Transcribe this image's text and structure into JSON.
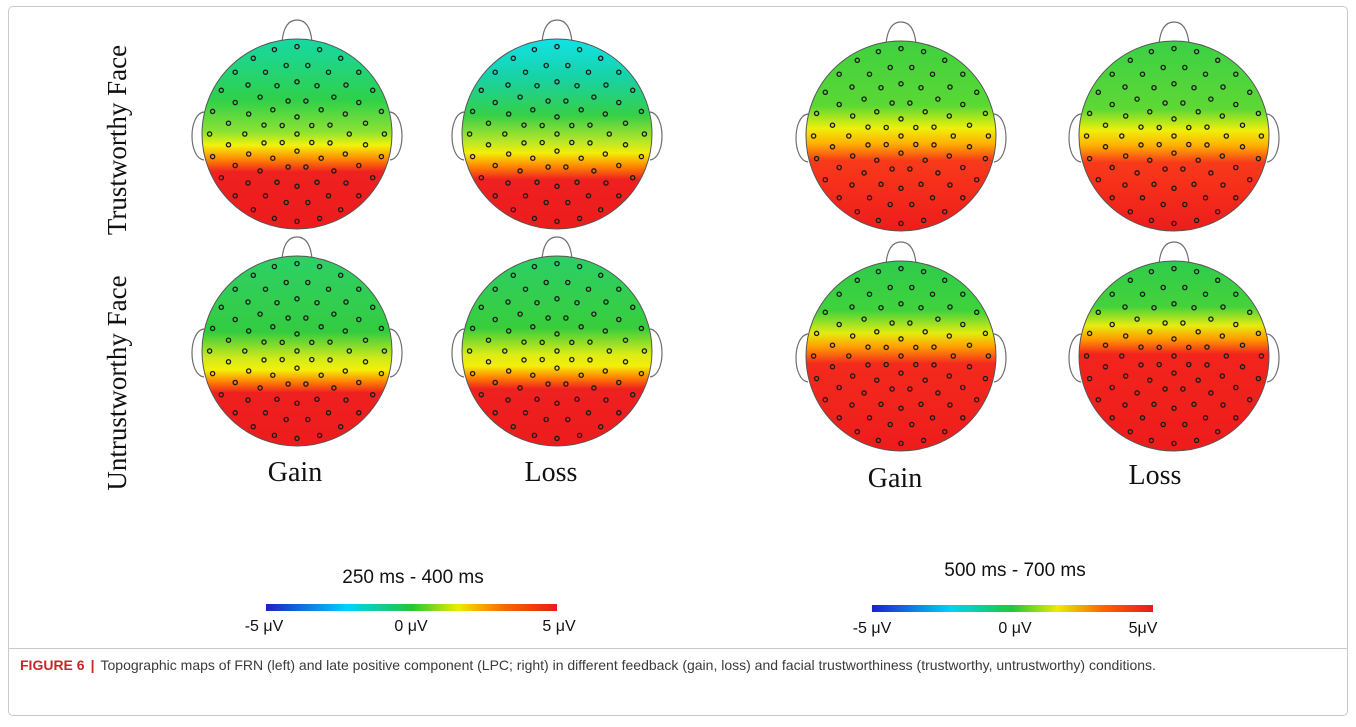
{
  "figure": {
    "row_labels": [
      "Trustworthy Face",
      "Untrustworthy Face"
    ],
    "panels": [
      {
        "time_window": "250 ms - 400 ms",
        "column_labels": [
          "Gain",
          "Loss"
        ],
        "colorbar_ticks": [
          "-5 μV",
          "0 μV",
          "5 μV"
        ],
        "colorbar_range_uV": [
          -5,
          5
        ]
      },
      {
        "time_window": "500 ms - 700 ms",
        "column_labels": [
          "Gain",
          "Loss"
        ],
        "colorbar_ticks": [
          "-5 μV",
          "0 μV",
          "5μV"
        ],
        "colorbar_range_uV": [
          -5,
          5
        ]
      }
    ],
    "colormap": [
      "#2020d0",
      "#00d8ff",
      "#22cc3a",
      "#f2f200",
      "#ff6a00",
      "#ee1c1c"
    ]
  },
  "caption": {
    "label": "FIGURE 6",
    "separator": "|",
    "text": "Topographic maps of FRN (left) and late positive component (LPC; right) in different feedback (gain, loss) and facial trustworthiness (trustworthy, untrustworthy) conditions."
  }
}
